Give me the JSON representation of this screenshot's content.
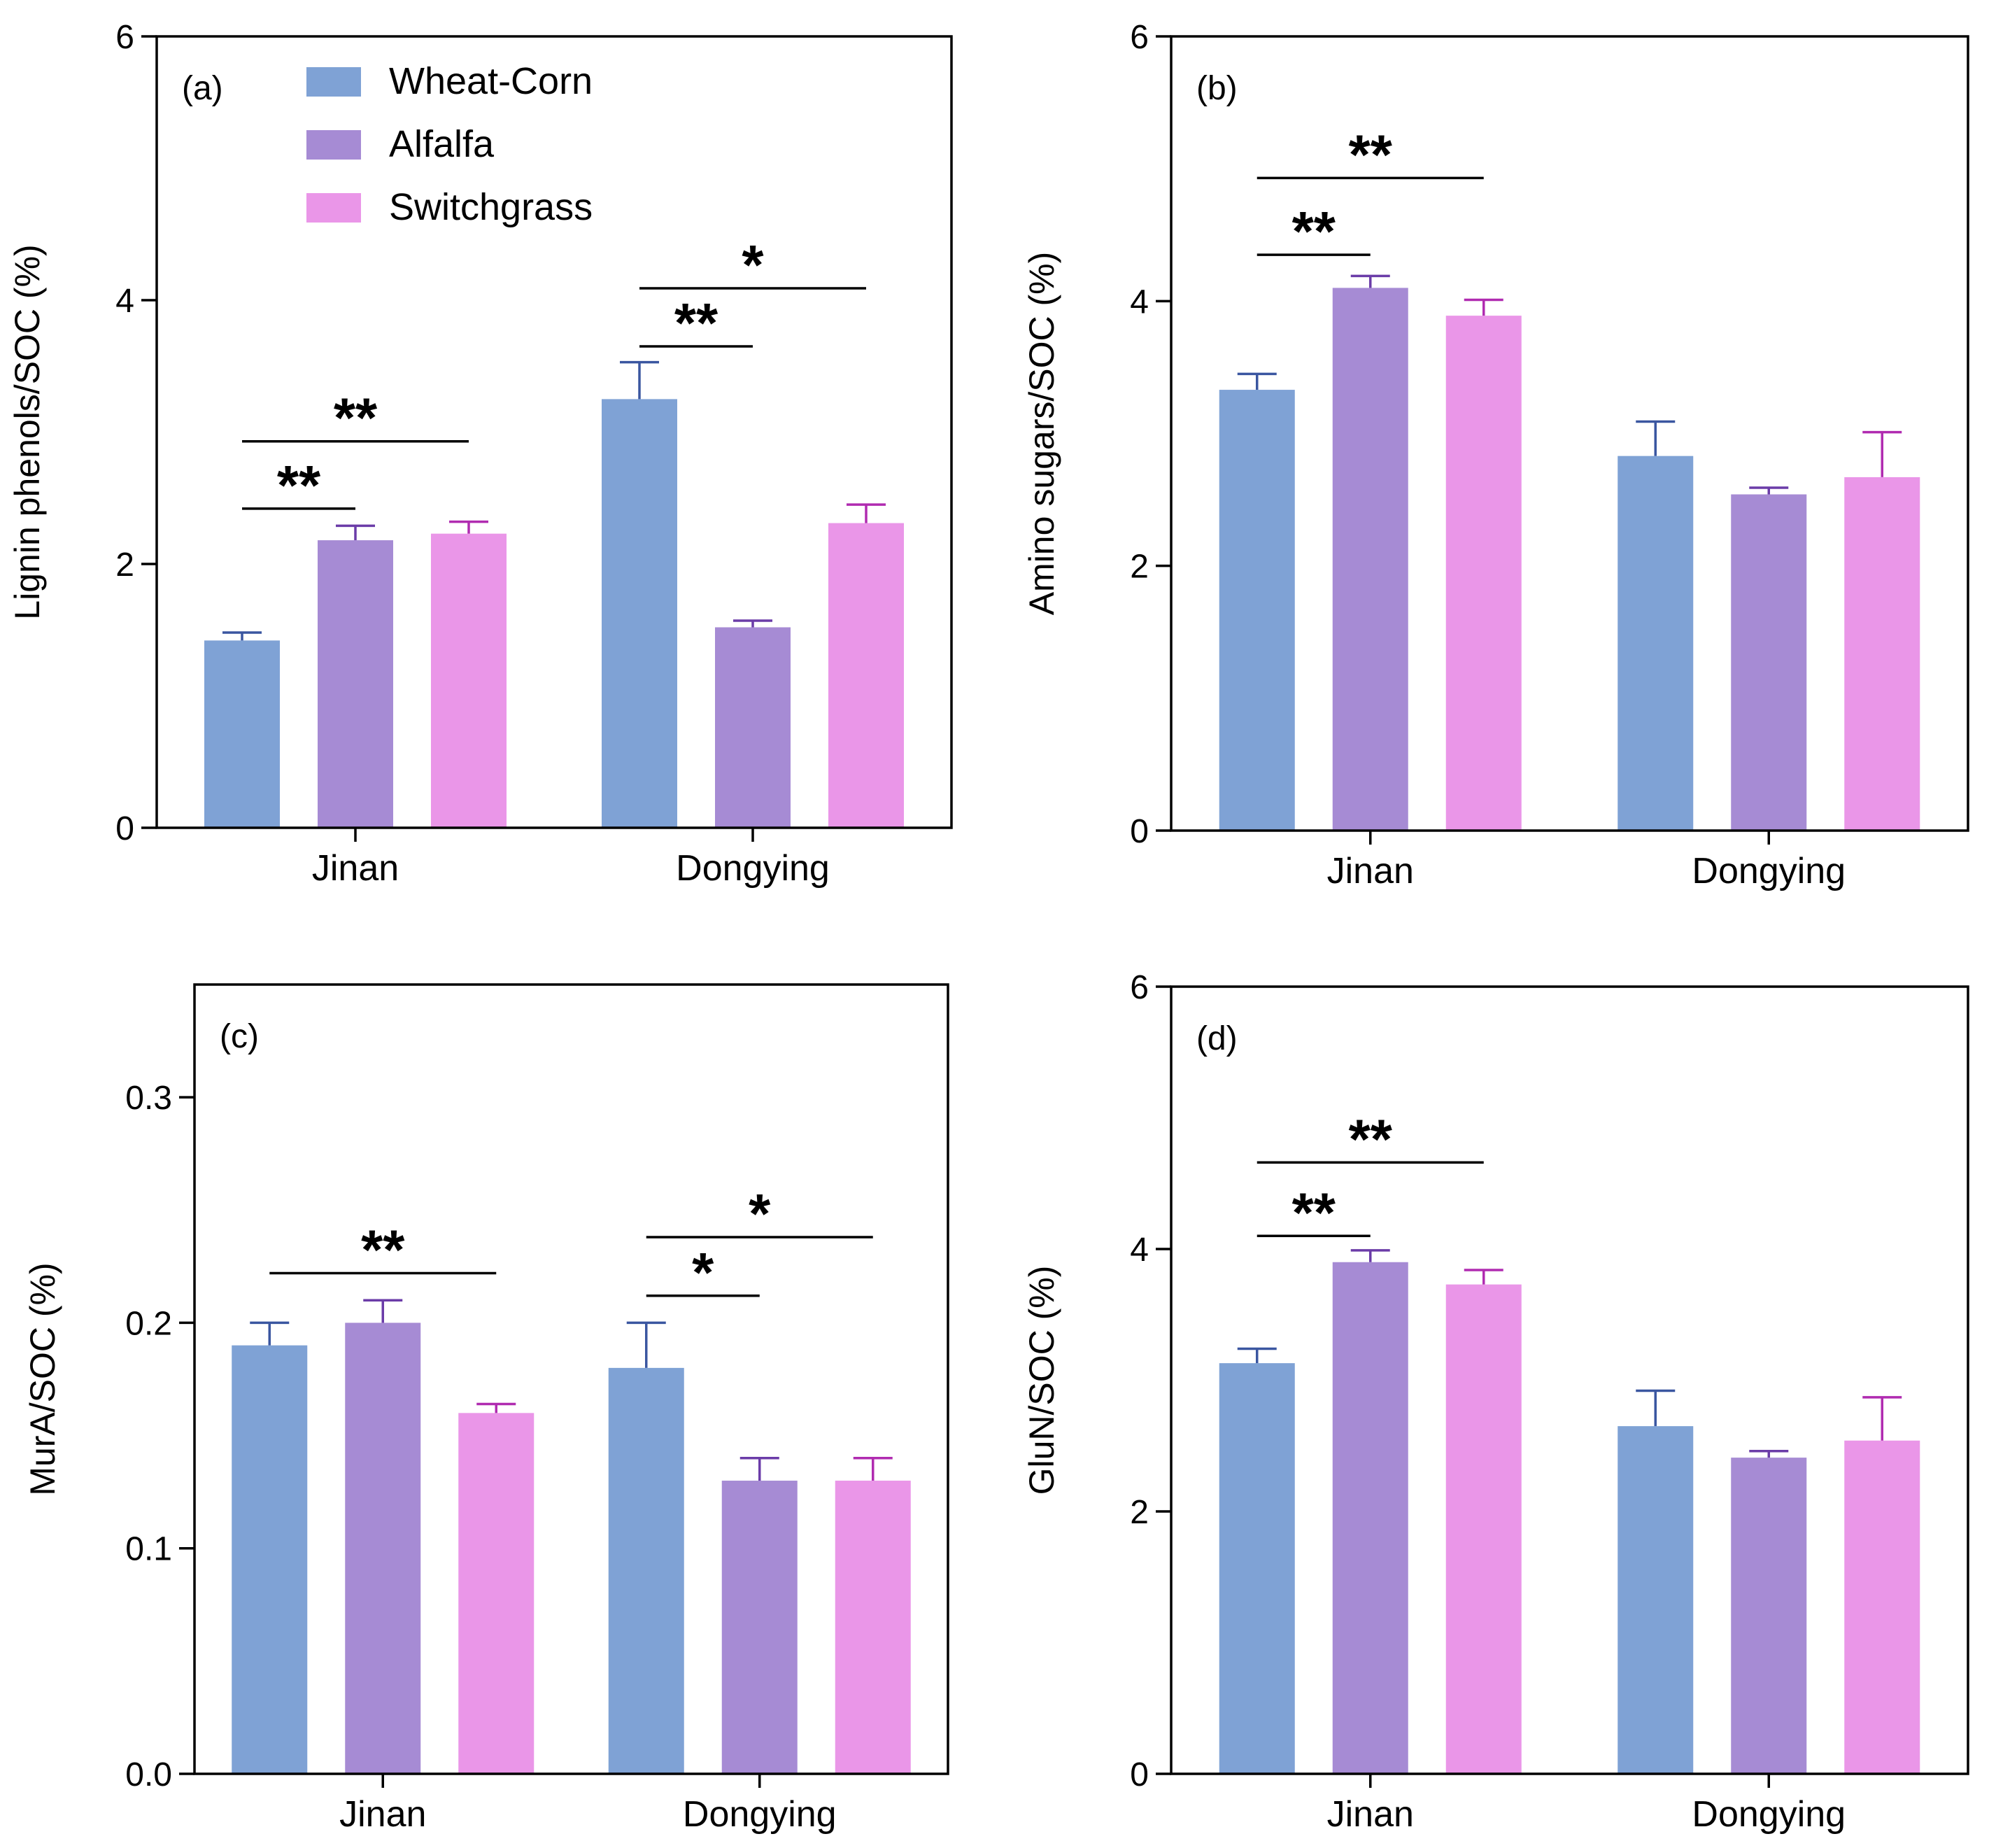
{
  "legend": {
    "entries": [
      {
        "name": "Wheat-Corn",
        "color": "#7fa2d5"
      },
      {
        "name": "Alfalfa",
        "color": "#a68bd4"
      },
      {
        "name": "Switchgrass",
        "color": "#ea96e8"
      }
    ]
  },
  "chart_data": [
    {
      "type": "bar",
      "panel": "(a)",
      "ylabel": "Lignin phenols/SOC (%)",
      "ylim": [
        0,
        6
      ],
      "yticks": [
        0,
        2,
        4,
        6
      ],
      "ytick_labels": [
        "0",
        "2",
        "4",
        "6"
      ],
      "categories": [
        "Jinan",
        "Dongying"
      ],
      "series": [
        {
          "name": "Wheat-Corn",
          "values": [
            1.42,
            3.25
          ],
          "errors": [
            0.06,
            0.28
          ]
        },
        {
          "name": "Alfalfa",
          "values": [
            2.18,
            1.52
          ],
          "errors": [
            0.11,
            0.05
          ]
        },
        {
          "name": "Switchgrass",
          "values": [
            2.23,
            2.31
          ],
          "errors": [
            0.09,
            0.14
          ]
        }
      ],
      "significance": [
        {
          "group": 0,
          "from": 0,
          "to": 1,
          "label": "**",
          "y": 2.42
        },
        {
          "group": 0,
          "from": 0,
          "to": 2,
          "label": "**",
          "y": 2.93
        },
        {
          "group": 1,
          "from": 0,
          "to": 1,
          "label": "**",
          "y": 3.65
        },
        {
          "group": 1,
          "from": 0,
          "to": 2,
          "label": "*",
          "y": 4.09
        }
      ]
    },
    {
      "type": "bar",
      "panel": "(b)",
      "ylabel": "Amino sugars/SOC (%)",
      "ylim": [
        0,
        6
      ],
      "yticks": [
        0,
        2,
        4,
        6
      ],
      "ytick_labels": [
        "0",
        "2",
        "4",
        "6"
      ],
      "categories": [
        "Jinan",
        "Dongying"
      ],
      "series": [
        {
          "name": "Wheat-Corn",
          "values": [
            3.33,
            2.83
          ],
          "errors": [
            0.12,
            0.26
          ]
        },
        {
          "name": "Alfalfa",
          "values": [
            4.1,
            2.54
          ],
          "errors": [
            0.09,
            0.05
          ]
        },
        {
          "name": "Switchgrass",
          "values": [
            3.89,
            2.67
          ],
          "errors": [
            0.12,
            0.34
          ]
        }
      ],
      "significance": [
        {
          "group": 0,
          "from": 0,
          "to": 1,
          "label": "**",
          "y": 4.35
        },
        {
          "group": 0,
          "from": 0,
          "to": 2,
          "label": "**",
          "y": 4.93
        }
      ]
    },
    {
      "type": "bar",
      "panel": "(c)",
      "ylabel": "MurA/SOC (%)",
      "ylim": [
        0,
        0.35
      ],
      "yticks": [
        0,
        0.1,
        0.2,
        0.3
      ],
      "ytick_labels": [
        "0.0",
        "0.1",
        "0.2",
        "0.3"
      ],
      "categories": [
        "Jinan",
        "Dongying"
      ],
      "series": [
        {
          "name": "Wheat-Corn",
          "values": [
            0.19,
            0.18
          ],
          "errors": [
            0.01,
            0.02
          ]
        },
        {
          "name": "Alfalfa",
          "values": [
            0.2,
            0.13
          ],
          "errors": [
            0.01,
            0.01
          ]
        },
        {
          "name": "Switchgrass",
          "values": [
            0.16,
            0.13
          ],
          "errors": [
            0.004,
            0.01
          ]
        }
      ],
      "significance": [
        {
          "group": 0,
          "from": 0,
          "to": 2,
          "label": "**",
          "y": 0.222
        },
        {
          "group": 1,
          "from": 0,
          "to": 1,
          "label": "*",
          "y": 0.212
        },
        {
          "group": 1,
          "from": 0,
          "to": 2,
          "label": "*",
          "y": 0.238
        }
      ]
    },
    {
      "type": "bar",
      "panel": "(d)",
      "ylabel": "GluN/SOC (%)",
      "ylim": [
        0,
        6
      ],
      "yticks": [
        0,
        2,
        4,
        6
      ],
      "ytick_labels": [
        "0",
        "2",
        "4",
        "6"
      ],
      "categories": [
        "Jinan",
        "Dongying"
      ],
      "series": [
        {
          "name": "Wheat-Corn",
          "values": [
            3.13,
            2.65
          ],
          "errors": [
            0.11,
            0.27
          ]
        },
        {
          "name": "Alfalfa",
          "values": [
            3.9,
            2.41
          ],
          "errors": [
            0.09,
            0.05
          ]
        },
        {
          "name": "Switchgrass",
          "values": [
            3.73,
            2.54
          ],
          "errors": [
            0.11,
            0.33
          ]
        }
      ],
      "significance": [
        {
          "group": 0,
          "from": 0,
          "to": 1,
          "label": "**",
          "y": 4.1
        },
        {
          "group": 0,
          "from": 0,
          "to": 2,
          "label": "**",
          "y": 4.66
        }
      ]
    }
  ]
}
